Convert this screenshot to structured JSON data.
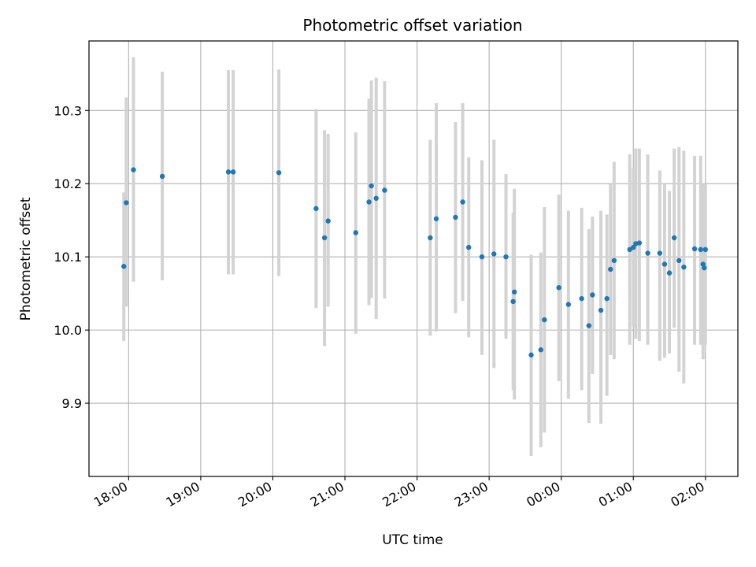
{
  "chart_data": {
    "type": "scatter",
    "title": "Photometric offset variation",
    "xlabel": "UTC time",
    "ylabel": "Photometric offset",
    "x_tick_labels": [
      "18:00",
      "19:00",
      "20:00",
      "21:00",
      "22:00",
      "23:00",
      "00:00",
      "01:00",
      "02:00"
    ],
    "y_tick_labels": [
      "9.9",
      "10.0",
      "10.1",
      "10.2",
      "10.3"
    ],
    "y_ticks": [
      9.9,
      10.0,
      10.1,
      10.2,
      10.3
    ],
    "xlim": [
      "17:27",
      "02:27"
    ],
    "ylim": [
      9.8,
      10.395
    ],
    "grid": true,
    "marker_color": "#1f77b4",
    "errorbar_color": "#d3d3d3",
    "series": [
      {
        "x": [
          "17:56",
          "17:58",
          "18:04",
          "18:28",
          "19:23",
          "19:27",
          "20:05",
          "20:36",
          "20:43",
          "20:46",
          "21:09",
          "21:20",
          "21:22",
          "21:26",
          "21:33",
          "22:11",
          "22:16",
          "22:32",
          "22:38",
          "22:43",
          "22:54",
          "23:04",
          "23:14",
          "23:20",
          "23:21",
          "23:35",
          "23:43",
          "23:46",
          "23:58",
          "00:06",
          "00:17",
          "00:23",
          "00:26",
          "00:33",
          "00:38",
          "00:41",
          "00:44",
          "00:57",
          "01:00",
          "01:02",
          "01:05",
          "01:12",
          "01:22",
          "01:26",
          "01:30",
          "01:34",
          "01:38",
          "01:42",
          "01:51",
          "01:56",
          "01:58",
          "01:59",
          "02:00"
        ],
        "y": [
          10.087,
          10.174,
          10.219,
          10.21,
          10.216,
          10.216,
          10.215,
          10.166,
          10.126,
          10.149,
          10.133,
          10.175,
          10.197,
          10.18,
          10.191,
          10.126,
          10.152,
          10.154,
          10.175,
          10.113,
          10.1,
          10.104,
          10.1,
          10.039,
          10.052,
          9.966,
          9.973,
          10.014,
          10.058,
          10.035,
          10.043,
          10.006,
          10.048,
          10.027,
          10.043,
          10.083,
          10.095,
          10.11,
          10.113,
          10.118,
          10.119,
          10.105,
          10.105,
          10.09,
          10.078,
          10.126,
          10.095,
          10.086,
          10.111,
          10.11,
          10.09,
          10.085,
          10.11
        ],
        "err_low": [
          9.985,
          10.032,
          10.066,
          10.068,
          10.076,
          10.076,
          10.074,
          10.03,
          9.978,
          10.032,
          9.995,
          10.034,
          10.044,
          10.015,
          10.043,
          9.992,
          9.998,
          10.023,
          10.04,
          9.99,
          9.966,
          9.948,
          9.988,
          9.918,
          9.905,
          9.828,
          9.84,
          9.86,
          9.93,
          9.906,
          9.918,
          9.873,
          9.94,
          9.872,
          9.91,
          9.966,
          9.96,
          9.98,
          10.004,
          9.988,
          9.985,
          9.98,
          9.958,
          9.962,
          9.968,
          10.003,
          9.943,
          9.927,
          9.98,
          9.98,
          9.96,
          9.98,
          9.98
        ],
        "err_high": [
          10.188,
          10.318,
          10.373,
          10.353,
          10.355,
          10.355,
          10.356,
          10.302,
          10.273,
          10.268,
          10.27,
          10.316,
          10.341,
          10.345,
          10.34,
          10.26,
          10.31,
          10.284,
          10.31,
          10.236,
          10.232,
          10.26,
          10.213,
          10.16,
          10.193,
          10.103,
          10.106,
          10.168,
          10.185,
          10.163,
          10.167,
          10.138,
          10.155,
          10.163,
          10.158,
          10.2,
          10.23,
          10.24,
          10.222,
          10.248,
          10.248,
          10.24,
          10.218,
          10.2,
          10.19,
          10.248,
          10.25,
          10.245,
          10.238,
          10.238,
          10.2,
          10.2,
          10.2
        ]
      }
    ]
  }
}
